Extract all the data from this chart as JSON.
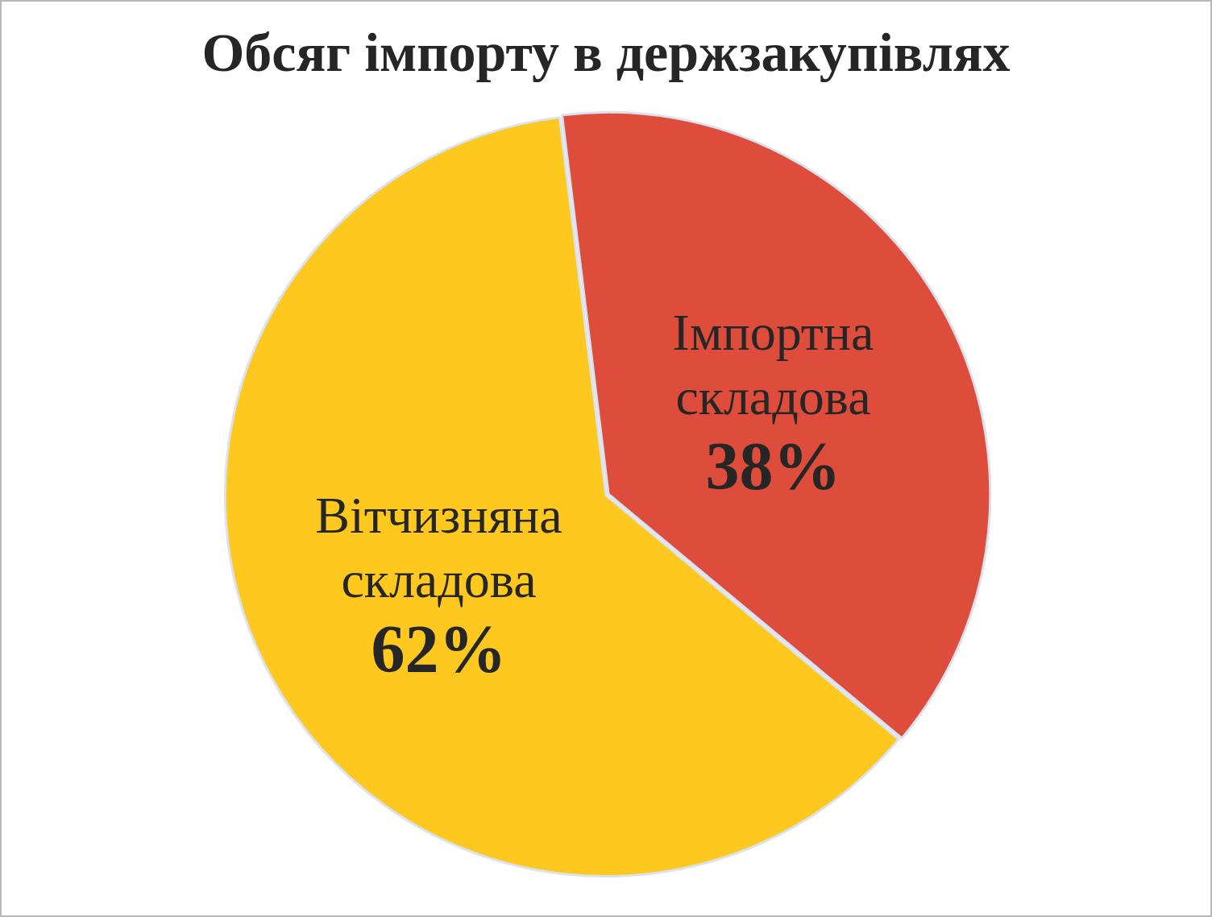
{
  "chart_data": {
    "type": "pie",
    "title": "Обсяг імпорту в держзакупівлях",
    "categories": [
      "Імпортна складова",
      "Вітчизняна складова"
    ],
    "values": [
      38,
      62
    ],
    "colors": [
      "#de4d3b",
      "#fec81f"
    ],
    "value_labels": [
      "38%",
      "62%"
    ],
    "legend": false
  }
}
